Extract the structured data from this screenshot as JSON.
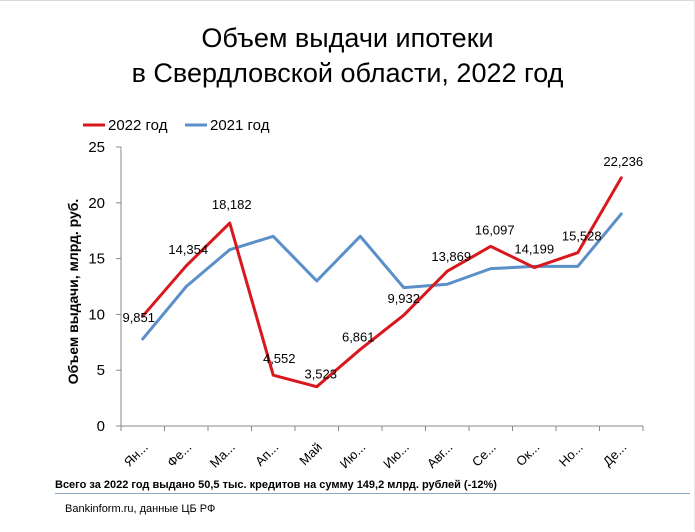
{
  "chart_data": {
    "type": "line",
    "title_line1": "Объем выдачи ипотеки",
    "title_line2": "в Свердловской области, 2022 год",
    "ylabel": "Объем выдачи, млрд. руб.",
    "xlabel": "",
    "ylim": [
      0,
      25
    ],
    "yticks": [
      "0",
      "5",
      "10",
      "15",
      "20",
      "25"
    ],
    "ytick_values": [
      0,
      5,
      10,
      15,
      20,
      25
    ],
    "categories": [
      "Ян...",
      "Фе...",
      "Ма...",
      "Ап...",
      "Май",
      "Ию...",
      "Ию...",
      "Авг...",
      "Се...",
      "Ок...",
      "Но...",
      "Де..."
    ],
    "legend_position": "top-left",
    "grid": false,
    "series": [
      {
        "name": "2022 год",
        "color": "#d9181e",
        "values": [
          9.851,
          14.354,
          18.182,
          4.552,
          3.523,
          6.861,
          9.932,
          13.869,
          16.097,
          14.199,
          15.528,
          22.236
        ],
        "labels": [
          "9,851",
          "14,354",
          "18,182",
          "4,552",
          "3,523",
          "6,861",
          "9,932",
          "13,869",
          "16,097",
          "14,199",
          "15,528",
          "22,236"
        ]
      },
      {
        "name": "2021 год",
        "color": "#5b8fc9",
        "values": [
          7.8,
          12.5,
          15.8,
          17.0,
          13.0,
          17.0,
          12.4,
          12.7,
          14.1,
          14.3,
          14.3,
          19.0
        ]
      }
    ]
  },
  "note": "Всего за 2022  год  выдано  50,5 тыс. кредитов на сумму  149,2  млрд. рублей  (-12%)",
  "source": "Bankinform.ru,  данные ЦБ РФ"
}
